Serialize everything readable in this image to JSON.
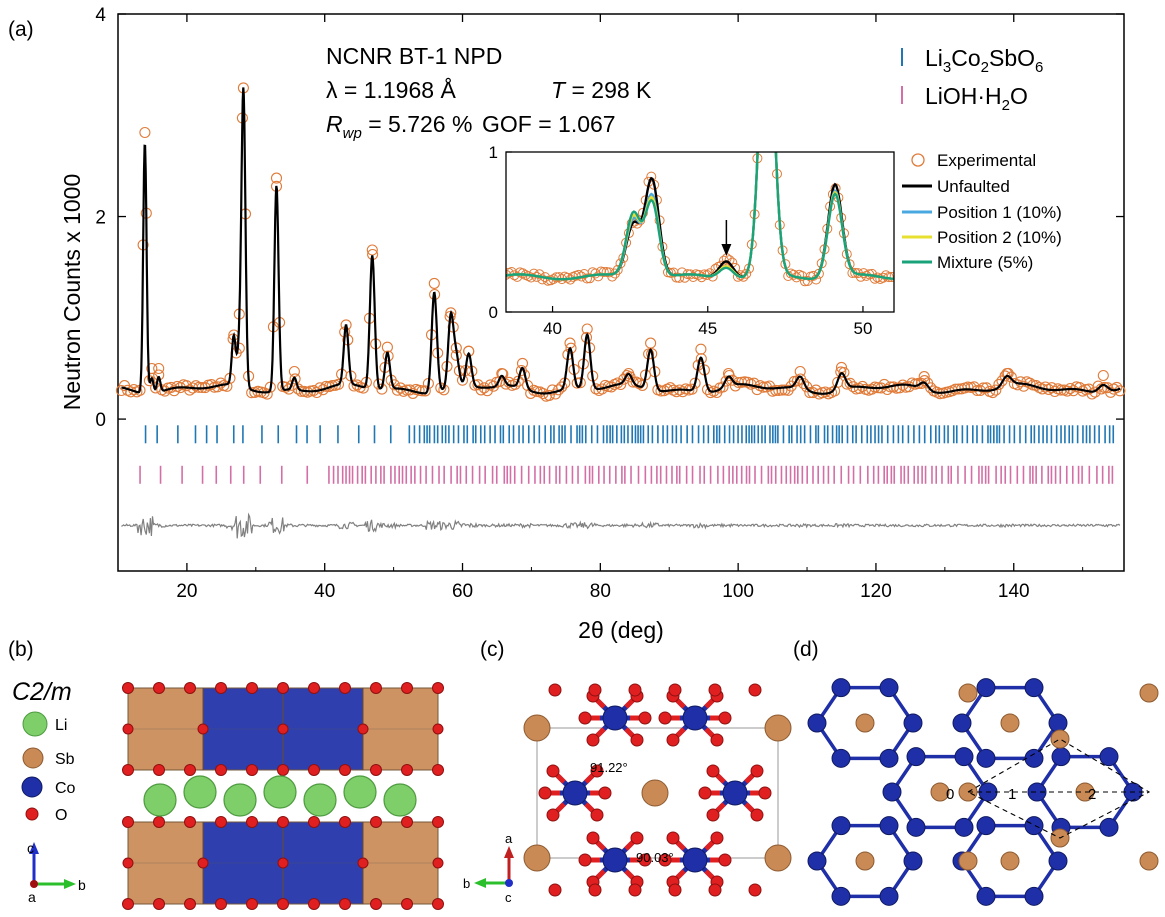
{
  "panel_labels": {
    "a": "(a)",
    "b": "(b)",
    "c": "(c)",
    "d": "(d)"
  },
  "colors": {
    "experimental": "#e07b39",
    "unfaulted": "#000000",
    "position1": "#4aa8e0",
    "position2": "#e8e030",
    "mixture": "#1aa37a",
    "li3co2sbo6_ticks": "#1f77b4",
    "lioh_ticks": "#d36fa6",
    "difference": "#808080",
    "li": "#7ecf6a",
    "sb": "#c98a55",
    "co": "#1f2fa8",
    "o": "#e02020"
  },
  "annotation": {
    "line1": "NCNR BT-1 NPD",
    "lambda": "λ = 1.1968 Å",
    "temp_symbol": "T",
    "temp_value": " = 298 K",
    "rwp_symbol": "R",
    "rwp_sub": "wp",
    "rwp_value": " = 5.726 %",
    "gof": "GOF = 1.067"
  },
  "phase_legend": {
    "li3co2sbo6": [
      "Li",
      "3",
      "Co",
      "2",
      "SbO",
      "6"
    ],
    "lioh": [
      "LiOH·H",
      "2",
      "O"
    ]
  },
  "inset_legend": [
    "Experimental",
    "Unfaulted",
    "Position 1 (10%)",
    "Position 2 (10%)",
    "Mixture (5%)"
  ],
  "chart_data": [
    {
      "type": "scatter",
      "xlabel": "2θ (deg)",
      "ylabel": "Neutron Counts x 1000",
      "xlim": [
        10,
        156
      ],
      "ylim": [
        -1.5,
        4
      ],
      "x_ticks": [
        20,
        40,
        60,
        80,
        100,
        120,
        140
      ],
      "y_ticks": [
        0,
        2,
        4
      ],
      "background_level": 0.3,
      "peaks": [
        {
          "x": 13.9,
          "y": 2.78
        },
        {
          "x": 14.9,
          "y": 0.45
        },
        {
          "x": 15.9,
          "y": 0.45
        },
        {
          "x": 26.8,
          "y": 0.78
        },
        {
          "x": 27.6,
          "y": 0.65
        },
        {
          "x": 28.2,
          "y": 3.22
        },
        {
          "x": 33.0,
          "y": 2.33
        },
        {
          "x": 35.6,
          "y": 0.42
        },
        {
          "x": 43.1,
          "y": 0.88
        },
        {
          "x": 46.9,
          "y": 1.62
        },
        {
          "x": 49.1,
          "y": 0.66
        },
        {
          "x": 55.9,
          "y": 1.29
        },
        {
          "x": 58.3,
          "y": 1.0
        },
        {
          "x": 59.1,
          "y": 0.58
        },
        {
          "x": 60.9,
          "y": 0.62
        },
        {
          "x": 65.7,
          "y": 0.4
        },
        {
          "x": 68.7,
          "y": 0.5
        },
        {
          "x": 75.6,
          "y": 0.7
        },
        {
          "x": 78.1,
          "y": 0.84
        },
        {
          "x": 84.1,
          "y": 0.4
        },
        {
          "x": 87.3,
          "y": 0.7
        },
        {
          "x": 94.6,
          "y": 0.64
        },
        {
          "x": 98.6,
          "y": 0.4
        },
        {
          "x": 109.0,
          "y": 0.42
        },
        {
          "x": 115.0,
          "y": 0.46
        },
        {
          "x": 127.0,
          "y": 0.37
        },
        {
          "x": 139.0,
          "y": 0.4
        },
        {
          "x": 153.0,
          "y": 0.38
        }
      ],
      "tick_row_li3co2sbo6": -0.15,
      "tick_row_lioh": -0.55,
      "difference_baseline": -1.05
    },
    {
      "type": "line",
      "title": "inset",
      "xlim": [
        38.5,
        51
      ],
      "ylim": [
        0,
        1
      ],
      "x_ticks": [
        40,
        45,
        50
      ],
      "y_ticks": [
        0,
        1
      ],
      "arrow_x": 45.6,
      "series": [
        {
          "name": "Experimental",
          "peaks": [
            {
              "x": 43.2,
              "y": 0.85
            },
            {
              "x": 42.6,
              "y": 0.55
            },
            {
              "x": 45.6,
              "y": 0.34
            },
            {
              "x": 46.9,
              "y": 2.0
            },
            {
              "x": 49.1,
              "y": 0.78
            }
          ]
        },
        {
          "name": "Unfaulted",
          "peaks": [
            {
              "x": 43.2,
              "y": 0.84
            },
            {
              "x": 42.6,
              "y": 0.55
            },
            {
              "x": 45.6,
              "y": 0.33
            },
            {
              "x": 46.9,
              "y": 2.0
            },
            {
              "x": 49.1,
              "y": 0.8
            }
          ]
        },
        {
          "name": "Position 1 (10%)",
          "peaks": [
            {
              "x": 43.2,
              "y": 0.74
            },
            {
              "x": 42.6,
              "y": 0.58
            },
            {
              "x": 45.6,
              "y": 0.3
            },
            {
              "x": 46.9,
              "y": 2.0
            },
            {
              "x": 49.1,
              "y": 0.76
            }
          ]
        },
        {
          "name": "Position 2 (10%)",
          "peaks": [
            {
              "x": 43.2,
              "y": 0.72
            },
            {
              "x": 42.6,
              "y": 0.6
            },
            {
              "x": 45.6,
              "y": 0.3
            },
            {
              "x": 46.9,
              "y": 2.0
            },
            {
              "x": 49.1,
              "y": 0.75
            }
          ]
        },
        {
          "name": "Mixture (5%)",
          "peaks": [
            {
              "x": 43.2,
              "y": 0.7
            },
            {
              "x": 42.6,
              "y": 0.62
            },
            {
              "x": 45.6,
              "y": 0.29
            },
            {
              "x": 46.9,
              "y": 2.0
            },
            {
              "x": 49.1,
              "y": 0.74
            }
          ]
        }
      ]
    }
  ],
  "panel_b": {
    "space_group": "C2/m",
    "legend": [
      "Li",
      "Sb",
      "Co",
      "O"
    ],
    "axes": {
      "c": "c",
      "a": "a",
      "b": "b"
    }
  },
  "panel_c": {
    "angle1": "91.22°",
    "angle2": "90.03°",
    "axes": {
      "a": "a",
      "b": "b",
      "c": "c"
    }
  },
  "panel_d": {
    "site_labels": [
      "0",
      "1",
      "2"
    ]
  }
}
